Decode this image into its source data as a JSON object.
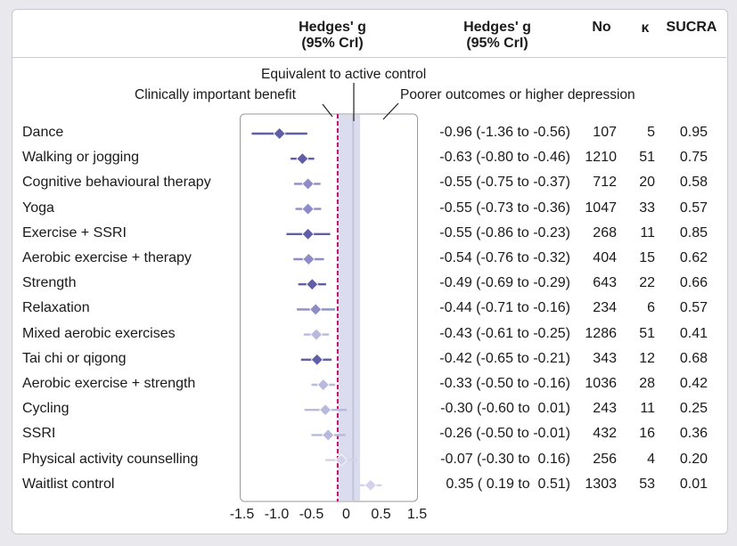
{
  "headers": {
    "plot_title_line1": "Hedges' g",
    "plot_title_line2": "(95% CrI)",
    "estimate_line1": "Hedges' g",
    "estimate_line2": "(95% CrI)",
    "no": "No",
    "k": "κ",
    "sucra": "SUCRA"
  },
  "annotations": {
    "equivalent": "Equivalent to active control",
    "clinical": "Clinically important benefit",
    "poorer": "Poorer outcomes or higher depression"
  },
  "colors": {
    "dark_marker": "#5f5ea6",
    "mid_marker": "#8d8cc6",
    "light_marker": "#b9b8dd",
    "lightest_marker": "#d3d2ea",
    "band": "#dcdcef",
    "clinical_line": "#b0156a"
  },
  "chart_data": {
    "type": "forest",
    "xlim": [
      -1.5,
      1.5
    ],
    "x_ticks": [
      "-1.5",
      "-1.0",
      "-0.5",
      "0",
      "0.5",
      "1.5"
    ],
    "reference_lines": {
      "clinical_benefit": -0.2,
      "equivalent_band": [
        0,
        0.2
      ]
    },
    "rows": [
      {
        "label": "Dance",
        "g": -0.96,
        "lo": -1.36,
        "hi": -0.56,
        "ci_text": "-0.96 (-1.36 to -0.56)",
        "no": "107",
        "k": "5",
        "sucra": "0.95",
        "shade": "dark"
      },
      {
        "label": "Walking or jogging",
        "g": -0.63,
        "lo": -0.8,
        "hi": -0.46,
        "ci_text": "-0.63 (-0.80 to -0.46)",
        "no": "1210",
        "k": "51",
        "sucra": "0.75",
        "shade": "dark"
      },
      {
        "label": "Cognitive behavioural therapy",
        "g": -0.55,
        "lo": -0.75,
        "hi": -0.37,
        "ci_text": "-0.55 (-0.75 to -0.37)",
        "no": "712",
        "k": "20",
        "sucra": "0.58",
        "shade": "mid"
      },
      {
        "label": "Yoga",
        "g": -0.55,
        "lo": -0.73,
        "hi": -0.36,
        "ci_text": "-0.55 (-0.73 to -0.36)",
        "no": "1047",
        "k": "33",
        "sucra": "0.57",
        "shade": "mid"
      },
      {
        "label": "Exercise + SSRI",
        "g": -0.55,
        "lo": -0.86,
        "hi": -0.23,
        "ci_text": "-0.55 (-0.86 to -0.23)",
        "no": "268",
        "k": "11",
        "sucra": "0.85",
        "shade": "dark"
      },
      {
        "label": "Aerobic exercise + therapy",
        "g": -0.54,
        "lo": -0.76,
        "hi": -0.32,
        "ci_text": "-0.54 (-0.76 to -0.32)",
        "no": "404",
        "k": "15",
        "sucra": "0.62",
        "shade": "mid"
      },
      {
        "label": "Strength",
        "g": -0.49,
        "lo": -0.69,
        "hi": -0.29,
        "ci_text": "-0.49 (-0.69 to -0.29)",
        "no": "643",
        "k": "22",
        "sucra": "0.66",
        "shade": "dark"
      },
      {
        "label": "Relaxation",
        "g": -0.44,
        "lo": -0.71,
        "hi": -0.16,
        "ci_text": "-0.44 (-0.71 to -0.16)",
        "no": "234",
        "k": "6",
        "sucra": "0.57",
        "shade": "mid"
      },
      {
        "label": "Mixed aerobic exercises",
        "g": -0.43,
        "lo": -0.61,
        "hi": -0.25,
        "ci_text": "-0.43 (-0.61 to -0.25)",
        "no": "1286",
        "k": "51",
        "sucra": "0.41",
        "shade": "light"
      },
      {
        "label": "Tai chi or qigong",
        "g": -0.42,
        "lo": -0.65,
        "hi": -0.21,
        "ci_text": "-0.42 (-0.65 to -0.21)",
        "no": "343",
        "k": "12",
        "sucra": "0.68",
        "shade": "dark"
      },
      {
        "label": "Aerobic exercise + strength",
        "g": -0.33,
        "lo": -0.5,
        "hi": -0.16,
        "ci_text": "-0.33 (-0.50 to -0.16)",
        "no": "1036",
        "k": "28",
        "sucra": "0.42",
        "shade": "light"
      },
      {
        "label": "Cycling",
        "g": -0.3,
        "lo": -0.6,
        "hi": 0.01,
        "ci_text": "-0.30 (-0.60 to  0.01)",
        "no": "243",
        "k": "11",
        "sucra": "0.25",
        "shade": "light"
      },
      {
        "label": "SSRI",
        "g": -0.26,
        "lo": -0.5,
        "hi": -0.01,
        "ci_text": "-0.26 (-0.50 to -0.01)",
        "no": "432",
        "k": "16",
        "sucra": "0.36",
        "shade": "light"
      },
      {
        "label": "Physical activity counselling",
        "g": -0.07,
        "lo": -0.3,
        "hi": 0.16,
        "ci_text": "-0.07 (-0.30 to  0.16)",
        "no": "256",
        "k": "4",
        "sucra": "0.20",
        "shade": "lightest"
      },
      {
        "label": "Waitlist control",
        "g": 0.35,
        "lo": 0.19,
        "hi": 0.51,
        "ci_text": "0.35 ( 0.19 to  0.51)",
        "no": "1303",
        "k": "53",
        "sucra": "0.01",
        "shade": "lightest"
      }
    ]
  }
}
